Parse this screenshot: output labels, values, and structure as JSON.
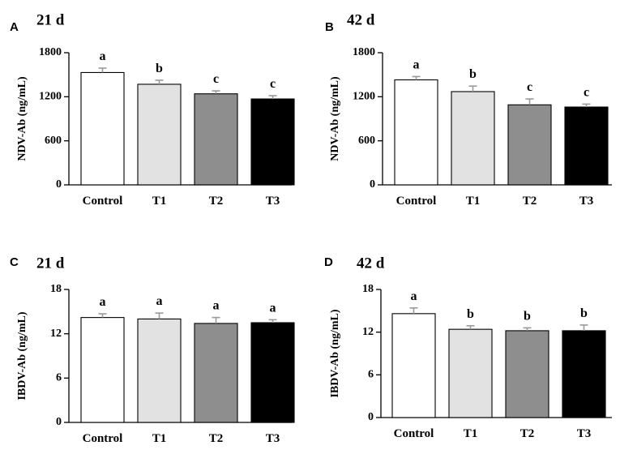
{
  "colors": {
    "axis": "#000000",
    "bar_outline": "#000000",
    "Control": "#ffffff",
    "T1": "#e2e2e2",
    "T2": "#8e8e8e",
    "T3": "#000000",
    "error_bar": "#9a9a9a"
  },
  "chart_data": [
    {
      "type": "bar",
      "panel": "A",
      "title": "21 d",
      "xlabel": "",
      "ylabel": "NDV-Ab (ng/mL)",
      "categories": [
        "Control",
        "T1",
        "T2",
        "T3"
      ],
      "values": [
        1530,
        1370,
        1240,
        1170
      ],
      "errors": [
        60,
        55,
        40,
        45
      ],
      "significance": [
        "a",
        "b",
        "c",
        "c"
      ],
      "ylim": [
        0,
        1800
      ],
      "yticks": [
        0,
        600,
        1200,
        1800
      ],
      "grid": false
    },
    {
      "type": "bar",
      "panel": "B",
      "title": "42 d",
      "xlabel": "",
      "ylabel": "NDV-Ab (ng/mL)",
      "categories": [
        "Control",
        "T1",
        "T2",
        "T3"
      ],
      "values": [
        1430,
        1270,
        1090,
        1060
      ],
      "errors": [
        45,
        75,
        80,
        40
      ],
      "significance": [
        "a",
        "b",
        "c",
        "c"
      ],
      "ylim": [
        0,
        1800
      ],
      "yticks": [
        0,
        600,
        1200,
        1800
      ],
      "grid": false
    },
    {
      "type": "bar",
      "panel": "C",
      "title": "21 d",
      "xlabel": "",
      "ylabel": "IBDV-Ab (ng/mL)",
      "categories": [
        "Control",
        "T1",
        "T2",
        "T3"
      ],
      "values": [
        14.2,
        14.0,
        13.4,
        13.5
      ],
      "errors": [
        0.5,
        0.8,
        0.8,
        0.4
      ],
      "significance": [
        "a",
        "a",
        "a",
        "a"
      ],
      "ylim": [
        0,
        18
      ],
      "yticks": [
        0,
        6,
        12,
        18
      ],
      "grid": false
    },
    {
      "type": "bar",
      "panel": "D",
      "title": "42 d",
      "xlabel": "",
      "ylabel": "IBDV-Ab (ng/mL)",
      "categories": [
        "Control",
        "T1",
        "T2",
        "T3"
      ],
      "values": [
        14.6,
        12.4,
        12.2,
        12.2
      ],
      "errors": [
        0.8,
        0.5,
        0.4,
        0.8
      ],
      "significance": [
        "a",
        "b",
        "b",
        "b"
      ],
      "ylim": [
        0,
        18
      ],
      "yticks": [
        0,
        6,
        12,
        18
      ],
      "grid": false
    }
  ]
}
